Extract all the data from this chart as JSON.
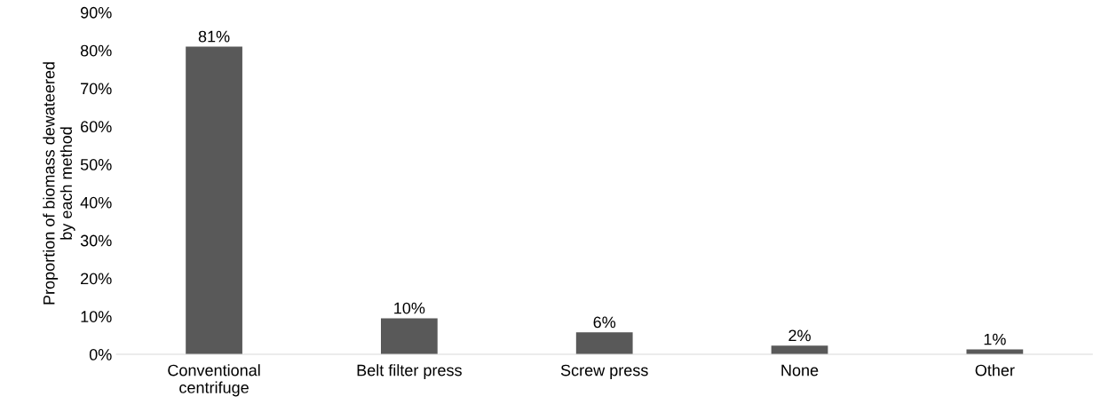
{
  "chart_data": {
    "type": "bar",
    "ylabel": "Proportion of biomass dewateered\nby each method",
    "categories": [
      "Conventional\ncentrifuge",
      "Belt filter press",
      "Screw press",
      "None",
      "Other"
    ],
    "values": [
      81,
      9.5,
      5.8,
      2.3,
      1.3
    ],
    "value_labels": [
      "81%",
      "10%",
      "6%",
      "2%",
      "1%"
    ],
    "color": "#595959",
    "ylim": [
      0,
      90
    ],
    "yticks": [
      {
        "value": 0,
        "label": "0%"
      },
      {
        "value": 10,
        "label": "10%"
      },
      {
        "value": 20,
        "label": "20%"
      },
      {
        "value": 30,
        "label": "30%"
      },
      {
        "value": 40,
        "label": "40%"
      },
      {
        "value": 50,
        "label": "50%"
      },
      {
        "value": 60,
        "label": "60%"
      },
      {
        "value": 70,
        "label": "70%"
      },
      {
        "value": 80,
        "label": "80%"
      },
      {
        "value": 90,
        "label": "90%"
      }
    ]
  }
}
